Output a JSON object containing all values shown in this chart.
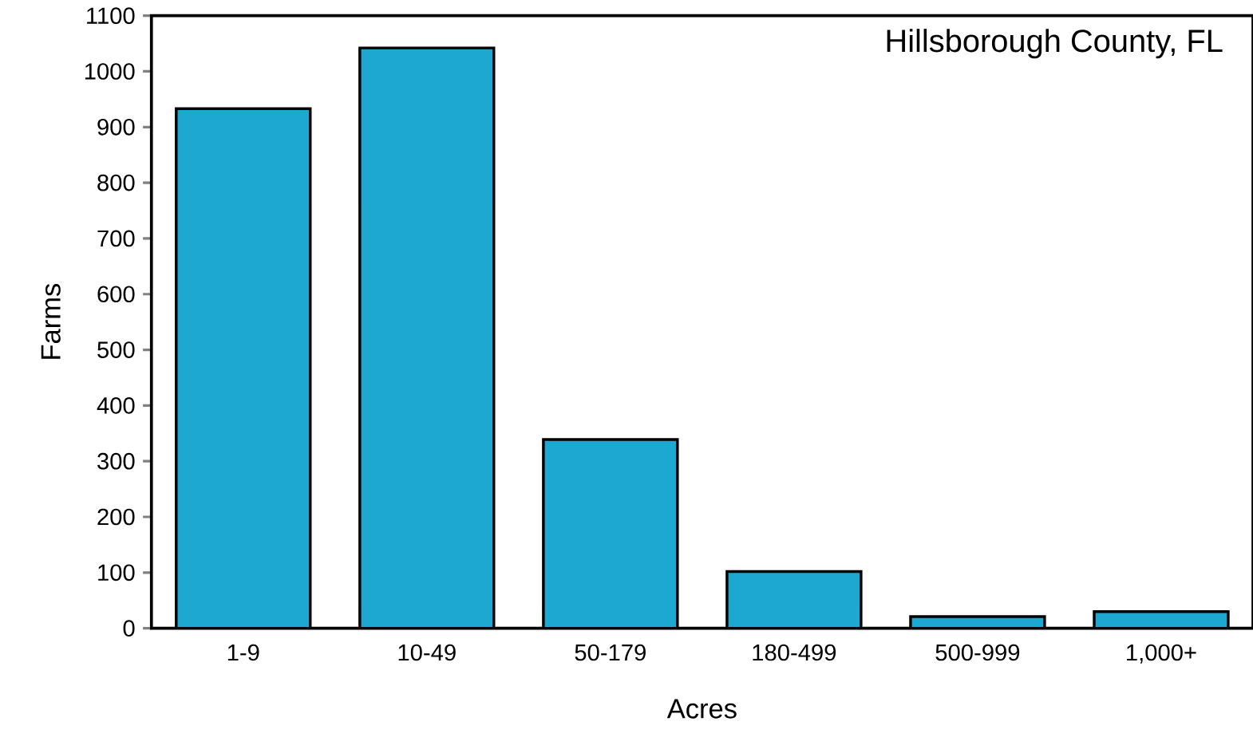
{
  "chart_data": {
    "type": "bar",
    "title": "Hillsborough County, FL",
    "xlabel": "Acres",
    "ylabel": "Farms",
    "categories": [
      "1-9",
      "10-49",
      "50-179",
      "180-499",
      "500-999",
      "1,000+"
    ],
    "values": [
      933,
      1042,
      339,
      102,
      21,
      30
    ],
    "color": "#1ca8d0",
    "ylim": [
      0,
      1100
    ],
    "yticks": [
      0,
      100,
      200,
      300,
      400,
      500,
      600,
      700,
      800,
      900,
      1000,
      1100
    ]
  }
}
